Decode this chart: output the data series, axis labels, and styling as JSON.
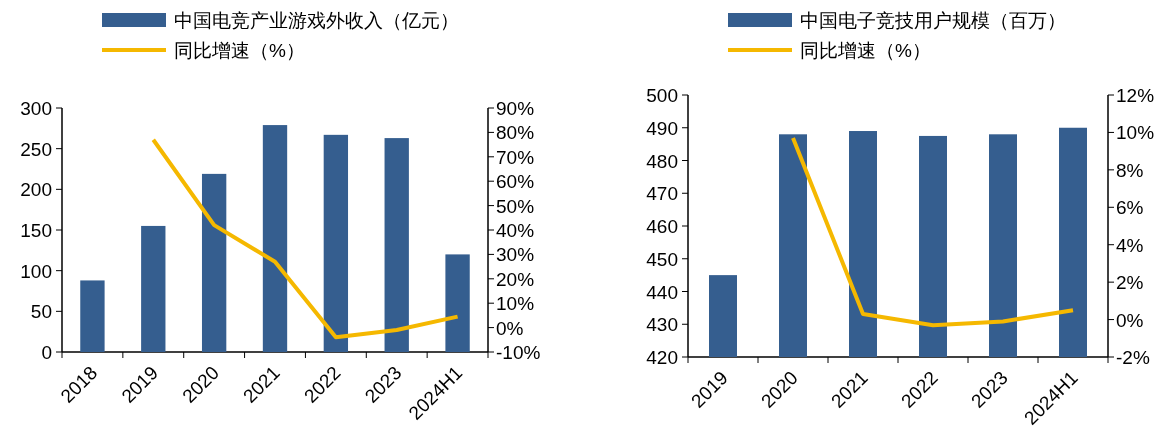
{
  "chart_data": [
    {
      "type": "bar",
      "categories": [
        "2018",
        "2019",
        "2020",
        "2021",
        "2022",
        "2023",
        "2024H1"
      ],
      "legend": "top",
      "tick_labels": true,
      "series": [
        {
          "name": "中国电竞产业游戏外收入（亿元）",
          "color": "#355e8f",
          "values": [
            88,
            155,
            219,
            279,
            267,
            263,
            120
          ]
        },
        {
          "name": "同比增速（%）",
          "type": "line",
          "axis": "y2",
          "color": "#f5b800",
          "values": [
            null,
            77,
            42,
            27,
            -4,
            -1,
            4.5
          ]
        }
      ],
      "ylim": [
        0,
        300
      ],
      "yticks": [
        0,
        50,
        100,
        150,
        200,
        250,
        300
      ],
      "y2lim": [
        -10,
        90
      ],
      "y2ticks": [
        {
          "value": -10,
          "label": "-10%"
        },
        {
          "value": 0,
          "label": "0%"
        },
        {
          "value": 10,
          "label": "10%"
        },
        {
          "value": 20,
          "label": "20%"
        },
        {
          "value": 30,
          "label": "30%"
        },
        {
          "value": 40,
          "label": "40%"
        },
        {
          "value": 50,
          "label": "50%"
        },
        {
          "value": 60,
          "label": "60%"
        },
        {
          "value": 70,
          "label": "70%"
        },
        {
          "value": 80,
          "label": "80%"
        },
        {
          "value": 90,
          "label": "90%"
        }
      ]
    },
    {
      "type": "bar",
      "categories": [
        "2019",
        "2020",
        "2021",
        "2022",
        "2023",
        "2024H1"
      ],
      "legend": "top",
      "series": [
        {
          "name": "中国电子竞技用户规模（百万）",
          "color": "#355e8f",
          "values": [
            445,
            488,
            489,
            487.5,
            488,
            490
          ]
        },
        {
          "name": "同比增速（%）",
          "type": "line",
          "axis": "y2",
          "color": "#f5b800",
          "values": [
            null,
            9.7,
            0.3,
            -0.3,
            -0.1,
            0.5
          ]
        }
      ],
      "ylim": [
        420,
        500
      ],
      "yticks": [
        420,
        430,
        440,
        450,
        460,
        470,
        480,
        490,
        500
      ],
      "y2lim": [
        -2,
        12
      ],
      "y2ticks": [
        {
          "value": -2,
          "label": "-2%"
        },
        {
          "value": 0,
          "label": "0%"
        },
        {
          "value": 2,
          "label": "2%"
        },
        {
          "value": 4,
          "label": "4%"
        },
        {
          "value": 6,
          "label": "6%"
        },
        {
          "value": 8,
          "label": "8%"
        },
        {
          "value": 10,
          "label": "10%"
        },
        {
          "value": 12,
          "label": "12%"
        }
      ]
    }
  ]
}
